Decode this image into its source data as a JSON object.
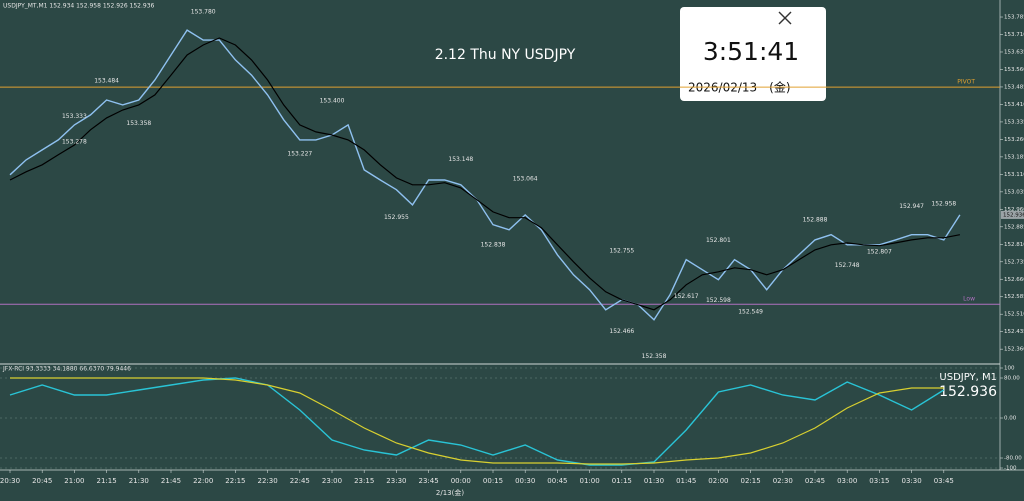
{
  "chart_data": [
    {
      "type": "line",
      "header": "USDJPY_MT,M1  152.934 152.958 152.926 152.936",
      "title": "2.12 Thu NY USDJPY",
      "categories": [
        "20:30",
        null,
        "20:45",
        null,
        "21:00",
        null,
        "21:15",
        null,
        "21:30",
        null,
        "21:45",
        null,
        "22:00",
        null,
        "22:15",
        null,
        "22:30",
        null,
        "22:45",
        null,
        "23:00",
        null,
        "23:15",
        null,
        "23:30",
        null,
        "23:45",
        null,
        "00:00",
        null,
        "00:15",
        null,
        "00:30",
        null,
        "00:45",
        null,
        "01:00",
        null,
        "01:15",
        null,
        "01:30",
        null,
        "01:45",
        null,
        "02:00",
        null,
        "02:15",
        null,
        "02:30",
        null,
        "02:45",
        null,
        "03:00",
        null,
        "03:15",
        null,
        "03:30",
        null,
        "03:45",
        null
      ],
      "date_label": "2/13(金)",
      "series": [
        {
          "color": "#8fc1f0",
          "values": [
            153.108,
            153.172,
            153.215,
            153.258,
            153.322,
            153.365,
            153.429,
            153.408,
            153.429,
            153.515,
            153.622,
            153.729,
            153.686,
            153.686,
            153.601,
            153.536,
            153.451,
            153.344,
            153.258,
            153.258,
            153.279,
            153.322,
            153.129,
            153.086,
            153.044,
            152.979,
            153.086,
            153.086,
            153.065,
            153.001,
            152.894,
            152.872,
            152.936,
            152.872,
            152.765,
            152.679,
            152.615,
            152.529,
            152.572,
            152.551,
            152.486,
            152.594,
            152.744,
            152.701,
            152.658,
            152.744,
            152.701,
            152.615,
            152.701,
            152.765,
            152.829,
            152.851,
            152.808,
            152.808,
            152.808,
            152.829,
            152.851,
            152.851,
            152.829,
            152.936
          ]
        },
        {
          "color": "#000000",
          "values": [
            153.086,
            153.121,
            153.151,
            153.194,
            153.236,
            153.301,
            153.352,
            153.386,
            153.408,
            153.451,
            153.536,
            153.622,
            153.665,
            153.695,
            153.665,
            153.601,
            153.515,
            153.408,
            153.322,
            153.292,
            153.279,
            153.258,
            153.215,
            153.151,
            153.095,
            153.065,
            153.065,
            153.074,
            153.052,
            153.001,
            152.949,
            152.924,
            152.924,
            152.881,
            152.808,
            152.735,
            152.666,
            152.606,
            152.572,
            152.551,
            152.529,
            152.572,
            152.636,
            152.679,
            152.692,
            152.709,
            152.701,
            152.679,
            152.701,
            152.744,
            152.786,
            152.808,
            152.816,
            152.808,
            152.804,
            152.816,
            152.829,
            152.838,
            152.838,
            152.851
          ]
        }
      ],
      "current_price": 152.936,
      "levels": [
        {
          "label": "PIVOT",
          "value": 153.484,
          "color": "#e0a030"
        },
        {
          "label": "Low",
          "value": 152.553,
          "color": "#b070c0"
        }
      ],
      "annotations": [
        {
          "label": "153.780",
          "value": 153.78,
          "x": "22:00"
        },
        {
          "label": "153.484",
          "value": 153.484,
          "x": "21:15"
        },
        {
          "label": "153.333",
          "value": 153.333,
          "x": "21:00"
        },
        {
          "label": "153.278",
          "value": 153.278,
          "x": "21:00"
        },
        {
          "label": "153.358",
          "value": 153.358,
          "x": "21:30"
        },
        {
          "label": "153.400",
          "value": 153.4,
          "x": "23:00"
        },
        {
          "label": "153.227",
          "value": 153.227,
          "x": "22:45"
        },
        {
          "label": "153.148",
          "value": 153.148,
          "x": "00:00"
        },
        {
          "label": "152.955",
          "value": 152.955,
          "x": "23:30"
        },
        {
          "label": "153.064",
          "value": 153.064,
          "x": "00:30"
        },
        {
          "label": "152.838",
          "value": 152.838,
          "x": "00:15"
        },
        {
          "label": "152.755",
          "value": 152.755,
          "x": "01:15"
        },
        {
          "label": "152.466",
          "value": 152.466,
          "x": "01:15"
        },
        {
          "label": "152.358",
          "value": 152.358,
          "x": "01:30"
        },
        {
          "label": "152.617",
          "value": 152.617,
          "x": "01:45"
        },
        {
          "label": "152.801",
          "value": 152.801,
          "x": "02:00"
        },
        {
          "label": "152.598",
          "value": 152.598,
          "x": "02:00"
        },
        {
          "label": "152.549",
          "value": 152.549,
          "x": "02:15"
        },
        {
          "label": "152.888",
          "value": 152.888,
          "x": "02:45"
        },
        {
          "label": "152.748",
          "value": 152.748,
          "x": "03:00"
        },
        {
          "label": "152.947",
          "value": 152.947,
          "x": "03:30"
        },
        {
          "label": "152.807",
          "value": 152.807,
          "x": "03:15"
        },
        {
          "label": "152.958",
          "value": 152.958,
          "x": "03:45"
        }
      ],
      "ylim": [
        152.305,
        153.858
      ],
      "yticks": [
        {
          "value": 153.785,
          "label": "153.785"
        },
        {
          "value": 153.71,
          "label": "153.710"
        },
        {
          "value": 153.635,
          "label": "153.635"
        },
        {
          "value": 153.56,
          "label": "153.560"
        },
        {
          "value": 153.485,
          "label": "153.485"
        },
        {
          "value": 153.41,
          "label": "153.410"
        },
        {
          "value": 153.335,
          "label": "153.335"
        },
        {
          "value": 153.26,
          "label": "153.260"
        },
        {
          "value": 153.185,
          "label": "153.185"
        },
        {
          "value": 153.11,
          "label": "153.110"
        },
        {
          "value": 153.035,
          "label": "153.035"
        },
        {
          "value": 152.96,
          "label": "152.960"
        },
        {
          "value": 152.885,
          "label": "152.885"
        },
        {
          "value": 152.81,
          "label": "152.810"
        },
        {
          "value": 152.735,
          "label": "152.735"
        },
        {
          "value": 152.66,
          "label": "152.660"
        },
        {
          "value": 152.585,
          "label": "152.585"
        },
        {
          "value": 152.51,
          "label": "152.510"
        },
        {
          "value": 152.435,
          "label": "152.435"
        },
        {
          "value": 152.36,
          "label": "152.360"
        }
      ],
      "grid": false
    },
    {
      "type": "line",
      "header": "JFX-RCI 93.3333 34.1880 66.6370 79.9446",
      "symbol": "USDJPY, M1",
      "series": [
        {
          "color": "#29c4d6",
          "values": [
            46,
            66,
            46,
            46,
            56,
            66,
            76,
            80,
            66,
            16,
            -44,
            -64,
            -74,
            -44,
            -54,
            -74,
            -54,
            -84,
            -94,
            -94,
            -88,
            -24,
            52,
            66,
            46,
            36,
            72,
            46,
            16,
            56
          ]
        },
        {
          "color": "#d8d030",
          "values": [
            80,
            80,
            80,
            80,
            80,
            80,
            80,
            76,
            66,
            50,
            16,
            -20,
            -50,
            -70,
            -84,
            -90,
            -90,
            -90,
            -92,
            -92,
            -90,
            -84,
            -80,
            -70,
            -50,
            -20,
            20,
            50,
            60,
            60
          ]
        }
      ],
      "ylim": [
        -100,
        100
      ],
      "yticks": [
        {
          "value": 100,
          "label": "100"
        },
        {
          "value": 80,
          "label": "80.00"
        },
        {
          "value": 0,
          "label": "0.00"
        },
        {
          "value": -80,
          "label": "-80.00"
        },
        {
          "value": -100,
          "label": "-100"
        }
      ],
      "grid": true
    }
  ],
  "clock": {
    "time": "3:51:41",
    "date": "2026/02/13　(金)"
  }
}
